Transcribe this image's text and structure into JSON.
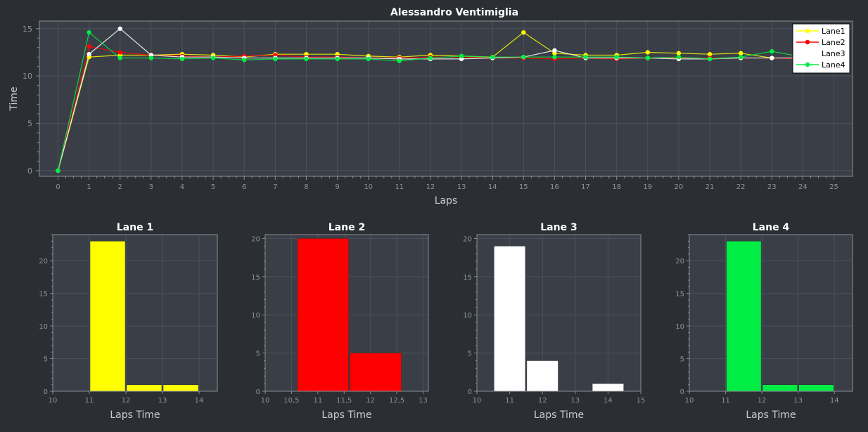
{
  "colors": {
    "background": "#2b2f33",
    "plot_background": "#3a3f47",
    "Lane1": "#ffff00",
    "Lane2": "#ff0000",
    "Lane3": "#ffffff",
    "Lane4": "#00ee44"
  },
  "chart_data": [
    {
      "type": "line",
      "title": "Alessandro Ventimiglia",
      "xlabel": "Laps",
      "ylabel": "Time",
      "xlim": [
        -0.6,
        25.6
      ],
      "ylim": [
        -0.6,
        15.8
      ],
      "xticks": [
        0,
        1,
        2,
        3,
        4,
        5,
        6,
        7,
        8,
        9,
        10,
        11,
        12,
        13,
        14,
        15,
        16,
        17,
        18,
        19,
        20,
        21,
        22,
        23,
        24,
        25
      ],
      "yticks": [
        0,
        5,
        10,
        15
      ],
      "grid": true,
      "legend": "top-right",
      "x": [
        0,
        1,
        2,
        3,
        4,
        5,
        6,
        7,
        8,
        9,
        10,
        11,
        12,
        13,
        14,
        15,
        16,
        17,
        18,
        19,
        20,
        21,
        22,
        23,
        24
      ],
      "series": [
        {
          "name": "Lane1",
          "color": "#ffff00",
          "values": [
            0,
            12.0,
            12.2,
            12.2,
            12.3,
            12.2,
            12.0,
            12.3,
            12.3,
            12.3,
            12.1,
            12.0,
            12.2,
            12.1,
            12.0,
            14.6,
            12.4,
            12.2,
            12.2,
            12.5,
            12.4,
            12.3,
            12.4,
            11.9,
            11.9
          ]
        },
        {
          "name": "Lane2",
          "color": "#ff0000",
          "values": [
            0,
            13.1,
            12.5,
            12.2,
            12.1,
            12.0,
            12.1,
            12.2,
            12.0,
            12.0,
            11.9,
            11.9,
            12.0,
            12.0,
            11.9,
            11.9,
            11.8,
            11.9,
            11.8,
            11.9,
            11.9,
            11.9,
            11.9,
            11.9,
            11.8
          ]
        },
        {
          "name": "Lane3",
          "color": "#ffffff",
          "values": [
            0,
            12.3,
            15.0,
            12.2,
            12.0,
            12.0,
            11.9,
            11.9,
            11.9,
            11.9,
            11.9,
            11.8,
            11.8,
            11.8,
            11.9,
            12.0,
            12.7,
            11.9,
            11.9,
            11.9,
            11.8,
            11.8,
            11.9,
            11.9,
            11.9
          ]
        },
        {
          "name": "Lane4",
          "color": "#00ee44",
          "values": [
            0,
            14.6,
            11.9,
            11.9,
            11.8,
            11.9,
            11.7,
            11.8,
            11.8,
            11.8,
            11.8,
            11.6,
            11.9,
            12.1,
            12.0,
            12.0,
            12.0,
            12.0,
            12.0,
            11.9,
            12.0,
            11.8,
            12.0,
            12.6,
            12.0
          ]
        }
      ]
    },
    {
      "type": "bar",
      "title": "Lane 1",
      "xlabel": "Laps Time",
      "ylabel": "",
      "color": "#ffff00",
      "xlim": [
        10,
        14.5
      ],
      "ylim": [
        0,
        24
      ],
      "xticks": [
        "10",
        "11",
        "12",
        "13",
        "14"
      ],
      "yticks": [
        0,
        5,
        10,
        15,
        20
      ],
      "bins": [
        [
          11,
          12
        ],
        [
          12,
          13
        ],
        [
          13,
          14
        ]
      ],
      "values": [
        23,
        1,
        1
      ]
    },
    {
      "type": "bar",
      "title": "Lane 2",
      "xlabel": "Laps Time",
      "ylabel": "",
      "color": "#ff0000",
      "xlim": [
        10,
        13.1
      ],
      "ylim": [
        0,
        20.5
      ],
      "xticks": [
        "10",
        "10,5",
        "11",
        "11,5",
        "12",
        "12,5",
        "13"
      ],
      "yticks": [
        0,
        5,
        10,
        15,
        20
      ],
      "bins": [
        [
          10.6,
          11.6
        ],
        [
          11.6,
          12.6
        ]
      ],
      "values": [
        20,
        5
      ]
    },
    {
      "type": "bar",
      "title": "Lane 3",
      "xlabel": "Laps Time",
      "ylabel": "",
      "color": "#ffffff",
      "xlim": [
        10,
        15
      ],
      "ylim": [
        0,
        20.5
      ],
      "xticks": [
        "10",
        "11",
        "12",
        "13",
        "14",
        "15"
      ],
      "yticks": [
        0,
        5,
        10,
        15,
        20
      ],
      "bins": [
        [
          10.5,
          11.5
        ],
        [
          11.5,
          12.5
        ],
        [
          12.5,
          13.5
        ],
        [
          13.5,
          14.5
        ]
      ],
      "values": [
        19,
        4,
        0,
        1
      ]
    },
    {
      "type": "bar",
      "title": "Lane 4",
      "xlabel": "Laps Time",
      "ylabel": "",
      "color": "#00ee44",
      "xlim": [
        10,
        14.5
      ],
      "ylim": [
        0,
        24
      ],
      "xticks": [
        "10",
        "11",
        "12",
        "13",
        "14"
      ],
      "yticks": [
        0,
        5,
        10,
        15,
        20
      ],
      "bins": [
        [
          11,
          12
        ],
        [
          12,
          13
        ],
        [
          13,
          14
        ]
      ],
      "values": [
        23,
        1,
        1
      ]
    }
  ]
}
